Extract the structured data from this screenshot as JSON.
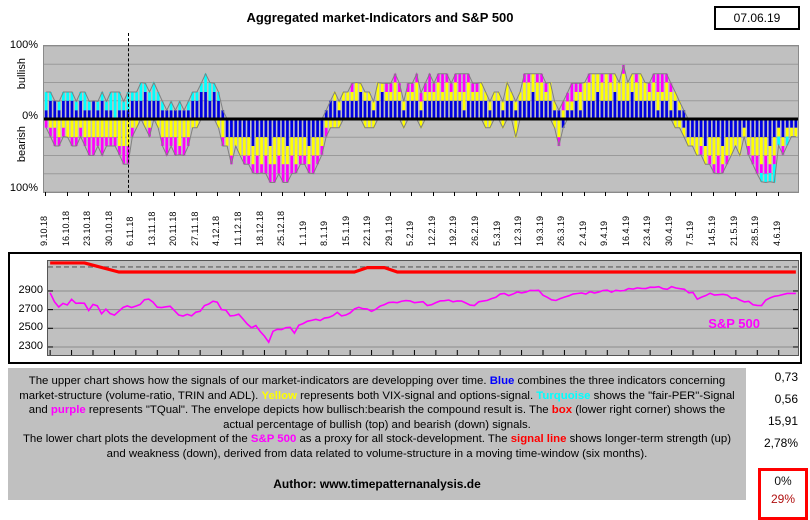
{
  "header": {
    "title": "Aggregated market-Indicators and S&P 500",
    "date": "07.06.19"
  },
  "upper": {
    "y_top_label": "100%",
    "y_zero_label": "0%",
    "y_bottom_label": "100%",
    "side_top_label": "bullish",
    "side_bottom_label": "bearish"
  },
  "lower": {
    "series_label": "S&P 500",
    "y_ticks": [
      2900,
      2700,
      2500,
      2300
    ]
  },
  "stats": [
    "0,73",
    "0,56",
    "15,91",
    "2,78%"
  ],
  "signal_box": {
    "bull": "0%",
    "bear": "29%"
  },
  "colors": {
    "blue": "#0000e0",
    "cyan": "#00ffff",
    "yellow": "#ffff00",
    "magenta": "#ff00ff",
    "red": "#ff0000",
    "envelope": "#808080",
    "plot_bg": "#c0c0c0",
    "grid": "#9a9a9a",
    "sp_line": "#ff00ff",
    "signal_line": "#ff0000"
  },
  "desc": {
    "p1": [
      {
        "t": "The upper chart shows how the signals of our market-indicators are developping over time. "
      },
      {
        "t": "Blue",
        "c": "#0000ff",
        "b": 1
      },
      {
        "t": " combines the three indicators concerning market-structure (volume-ratio, TRIN and ADL). "
      },
      {
        "t": "Yellow",
        "c": "#ffff00",
        "b": 1
      },
      {
        "t": " represents both VIX-signal and options-signal. "
      },
      {
        "t": "Turquoise",
        "c": "#00ffff",
        "b": 1
      },
      {
        "t": " shows the \"fair-PER\"-Signal and "
      },
      {
        "t": "purple",
        "c": "#ff00ff",
        "b": 1
      },
      {
        "t": " represents \"TQual\". The envelope depicts how bullisch:bearish the compound result is. The "
      },
      {
        "t": "box",
        "c": "#ff0000",
        "b": 1
      },
      {
        "t": " (lower right corner) shows the actual percentage of bullish (top) and bearish (down) signals."
      }
    ],
    "p2": [
      {
        "t": "The lower chart plots the development of the "
      },
      {
        "t": "S&P 500",
        "c": "#ff00ff",
        "b": 1
      },
      {
        "t": " as a proxy for all stock-development. The "
      },
      {
        "t": "signal line",
        "c": "#ff0000",
        "b": 1
      },
      {
        "t": " shows longer-term strength (up) and weakness (down), derived from data related to volume-structure in a moving time-window (six months)."
      }
    ],
    "author": "Author: www.timepatternanalysis.de"
  },
  "chart_data": [
    {
      "type": "bar",
      "name": "aggregated-indicator-signals",
      "title": "Aggregated market-Indicators",
      "ylabel_top": "bullish",
      "ylabel_bottom": "bearish",
      "ylim": [
        -100,
        100
      ],
      "grid_step_pct": 25,
      "x_tick_labels": [
        "9.10.18",
        "16.10.18",
        "23.10.18",
        "30.10.18",
        "6.11.18",
        "13.11.18",
        "20.11.18",
        "27.11.18",
        "4.12.18",
        "11.12.18",
        "18.12.18",
        "25.12.18",
        "1.1.19",
        "8.1.19",
        "15.1.19",
        "22.1.19",
        "29.1.19",
        "5.2.19",
        "12.2.19",
        "19.2.19",
        "26.2.19",
        "5.3.19",
        "12.3.19",
        "19.3.19",
        "26.3.19",
        "2.4.19",
        "9.4.19",
        "16.4.19",
        "23.4.19",
        "30.4.19",
        "7.5.19",
        "14.5.19",
        "21.5.19",
        "28.5.19",
        "4.6.19"
      ],
      "days_per_tick": 5,
      "segment_colors": {
        "b": "blue",
        "c": "cyan",
        "y": "yellow",
        "m": "magenta"
      },
      "bars_format": "up-stack|down-stack, letter=indicator color, number=percent",
      "bars": [
        "b12c25|m12",
        "b25c12|y12m12",
        "b25|y12m25",
        "b12c12|y25m12",
        "b25c12|y12m12",
        "b25c12|y25",
        "b25c12|y25m12",
        "b12c12|y25m12",
        "b25c12|y12m12",
        "b12c25|y25m12",
        "b12c12|y25m25",
        "b25|y25m25",
        "b12c12|y25m12",
        "b25c12|y25m25",
        "b12c12|y25m12",
        "b12c25|y25m12",
        "c37|y25m12",
        "b12c25|y37m12",
        "b12c12|y37m25",
        "b12c25|y37m25",
        "b25c12|y12m12",
        "b25c12|y12",
        "b25c25|",
        "b37c12|y12",
        "b25c12|y12m12",
        "b25c25|",
        "b25c12|y12",
        "b12c12|y25m12",
        "b12|y25m25",
        "b12c12|y25m12",
        "b12|y25m25",
        "b12c12|y37m12",
        "b12|y25m25",
        "b12c12|y25m12",
        "b25c12|y12",
        "b25c12|y12",
        "b37c12|",
        "b37c25|",
        "b25c25|",
        "b37c12|",
        "b25c12|y12",
        "b12|y25m12",
        "|b25y12",
        "|b25y25m12",
        "|b25y12",
        "|b25y25",
        "|b25y25m12",
        "|b25y25m12",
        "|b37y25m12",
        "|b25y25m25",
        "|b25y37m12",
        "|b25y25m25",
        "|b37y25m25",
        "|b25y37m25",
        "|b25y25m25",
        "|b25y37m25",
        "|b37y25m25",
        "|b25y25m25",
        "|b25y37m12",
        "|b25y25m12",
        "|b25y25m12",
        "|b37y25m12",
        "|b25y25m25",
        "|b25y25m12",
        "|b25y12m12",
        "b12|y12m12",
        "b25|y12",
        "b25y12|y12",
        "b12y12|y12",
        "b25y12|",
        "b25y12|",
        "b25y12m12|",
        "b25y25|",
        "b37y12|",
        "b25y12|y12",
        "b25y12|y12",
        "b12y12|y12",
        "b25y25|",
        "b37y12|",
        "b25y12m12|",
        "b25y12m12|",
        "b25y25m12|",
        "b25y12m12|",
        "b12y12|y12",
        "b25y12m12|",
        "b25y12m12|",
        "b25y25m12|",
        "b12y12m12|y12",
        "b25y12m12|",
        "b25y12m25|",
        "b25y12m12|",
        "b25y25m12|",
        "b25y12m25|",
        "b25y25m12|",
        "b25y12m12|",
        "b25y25m12|",
        "b25y12m25|",
        "b12y25m25|",
        "b25y25m12|",
        "b25y12m12|",
        "b25y12m12|",
        "b25y25|",
        "b25y12|y12",
        "b12y12|y12",
        "b25y12|",
        "b25y12|",
        "b12y12|y12",
        "b25y25|",
        "b25y12|",
        "b12y12|y25",
        "b25y12|",
        "b25y25m12|",
        "b25y25m12|",
        "b37y25|",
        "b25y25m12|",
        "b25y25m12|",
        "b25y12m12|",
        "b25y25|",
        "b12y12|y12",
        "b12|y25m12",
        "y12m12|b12",
        "b12y12m12|",
        "b12y12m25|",
        "b25y12m12|",
        "b12y25m12|",
        "b25y25|",
        "b25y25m12|",
        "b25y37|",
        "b37y25|",
        "b25y25m12|",
        "b25y37|",
        "b25y25m12|",
        "b37y25|",
        "b25y25|",
        "b25y37m12|",
        "b25y25|",
        "b37y25|",
        "b25y25m12|",
        "b25y37|",
        "b25y25|",
        "b25y12m12|",
        "b25y25m12|",
        "b12y25m25|",
        "b25y12m25|",
        "b25y25m12|",
        "b12y25m12|",
        "b25y12|y12",
        "b12y12|y12",
        "b12|b12y12",
        "|b25y12",
        "|b25y12",
        "|b25y25",
        "|b25y12m12",
        "|b37y25",
        "|b25y25m12",
        "|b25y37m12",
        "|b25y25m25",
        "|b37y25m12",
        "|b25y25m12",
        "|b25y25",
        "|b25y12",
        "|b25y25",
        "|b12y12",
        "|b25y12m12",
        "|b25y25m12",
        "|b25y25m25",
        "|b25y37m12c12",
        "|b25y25m25c12",
        "|b37y25m12c12",
        "|b25y25m12c25",
        "|b12y12c12",
        "|b25y12m12",
        "|b12y12c12",
        "|b12y12",
        "|b12y12"
      ],
      "final_day_bullish_pct": "0%",
      "final_day_bearish_pct": "29%"
    },
    {
      "type": "line",
      "name": "sp500-with-signal-line",
      "series_label": "S&P 500",
      "y_tick_labels": [
        2900,
        2700,
        2500,
        2300
      ],
      "ylim": [
        2214,
        3221
      ],
      "dashed_reference_level": 3157,
      "sp500_values": [
        2880,
        2785,
        2728,
        2767,
        2750,
        2810,
        2768,
        2770,
        2768,
        2691,
        2756,
        2741,
        2656,
        2705,
        2658,
        2641,
        2682,
        2723,
        2740,
        2723,
        2738,
        2755,
        2806,
        2813,
        2781,
        2726,
        2722,
        2730,
        2736,
        2690,
        2642,
        2632,
        2650,
        2633,
        2673,
        2682,
        2743,
        2760,
        2790,
        2780,
        2700,
        2695,
        2633,
        2637,
        2651,
        2600,
        2546,
        2506,
        2530,
        2467,
        2416,
        2351,
        2468,
        2489,
        2486,
        2507,
        2510,
        2448,
        2532,
        2550,
        2575,
        2585,
        2596,
        2583,
        2610,
        2616,
        2636,
        2671,
        2633,
        2642,
        2665,
        2707,
        2725,
        2710,
        2706,
        2682,
        2705,
        2738,
        2754,
        2776,
        2780,
        2775,
        2790,
        2797,
        2793,
        2775,
        2780,
        2785,
        2744,
        2753,
        2775,
        2793,
        2796,
        2803,
        2784,
        2793,
        2792,
        2771,
        2749,
        2744,
        2784,
        2792,
        2799,
        2818,
        2833,
        2867,
        2873,
        2850,
        2867,
        2889,
        2879,
        2888,
        2906,
        2905,
        2907,
        2854,
        2832,
        2805,
        2798,
        2818,
        2834,
        2848,
        2867,
        2873,
        2879,
        2867,
        2893,
        2878,
        2888,
        2905,
        2908,
        2888,
        2907,
        2900,
        2905,
        2926,
        2920,
        2933,
        2927,
        2926,
        2940,
        2939,
        2946,
        2924,
        2918,
        2946,
        2932,
        2924,
        2918,
        2880,
        2884,
        2812,
        2834,
        2851,
        2876,
        2856,
        2860,
        2864,
        2856,
        2822,
        2826,
        2802,
        2783,
        2789,
        2752,
        2745,
        2744,
        2803,
        2826,
        2843,
        2850,
        2862,
        2873,
        2873,
        2873
      ],
      "signal_line_points": [
        [
          0,
          3200
        ],
        [
          8,
          3200
        ],
        [
          16,
          3103
        ],
        [
          71,
          3103
        ],
        [
          74,
          3150
        ],
        [
          78,
          3150
        ],
        [
          81,
          3103
        ],
        [
          174,
          3103
        ]
      ]
    }
  ]
}
